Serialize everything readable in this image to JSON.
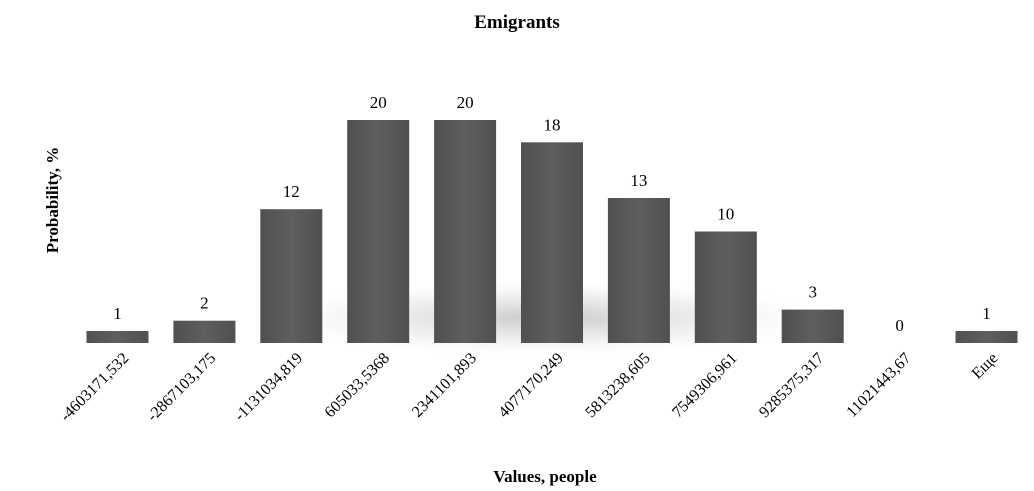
{
  "chart_data": {
    "type": "bar",
    "title": "Emigrants",
    "xlabel": "Values, people",
    "ylabel": "Probability, %",
    "categories": [
      "-4603171,532",
      "-2867103,175",
      "-1131034,819",
      "605033,5368",
      "2341101,893",
      "4077170,249",
      "5813238,605",
      "7549306,961",
      "9285375,317",
      "11021443,67",
      "Еще"
    ],
    "values": [
      1,
      2,
      12,
      20,
      20,
      18,
      13,
      10,
      3,
      0,
      1
    ],
    "ylim": [
      0,
      20
    ],
    "grid": false,
    "legend": "none",
    "bar_color": "#595959"
  }
}
